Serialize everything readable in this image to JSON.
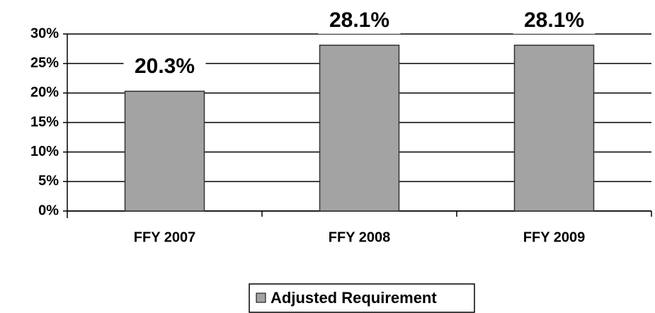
{
  "chart_data": {
    "type": "bar",
    "categories": [
      "FFY 2007",
      "FFY 2008",
      "FFY 2009"
    ],
    "series": [
      {
        "name": "Adjusted Requirement",
        "color": "#a3a3a3",
        "values": [
          20.3,
          28.1,
          28.1
        ],
        "value_labels": [
          "20.3%",
          "28.1%",
          "28.1%"
        ]
      }
    ],
    "ylim": [
      0,
      30
    ],
    "yticks": [
      {
        "value": 0,
        "label": "0%"
      },
      {
        "value": 5,
        "label": "5%"
      },
      {
        "value": 10,
        "label": "10%"
      },
      {
        "value": 15,
        "label": "15%"
      },
      {
        "value": 20,
        "label": "20%"
      },
      {
        "value": 25,
        "label": "25%"
      },
      {
        "value": 30,
        "label": "30%"
      }
    ],
    "grid": true,
    "legend": "bottom"
  }
}
